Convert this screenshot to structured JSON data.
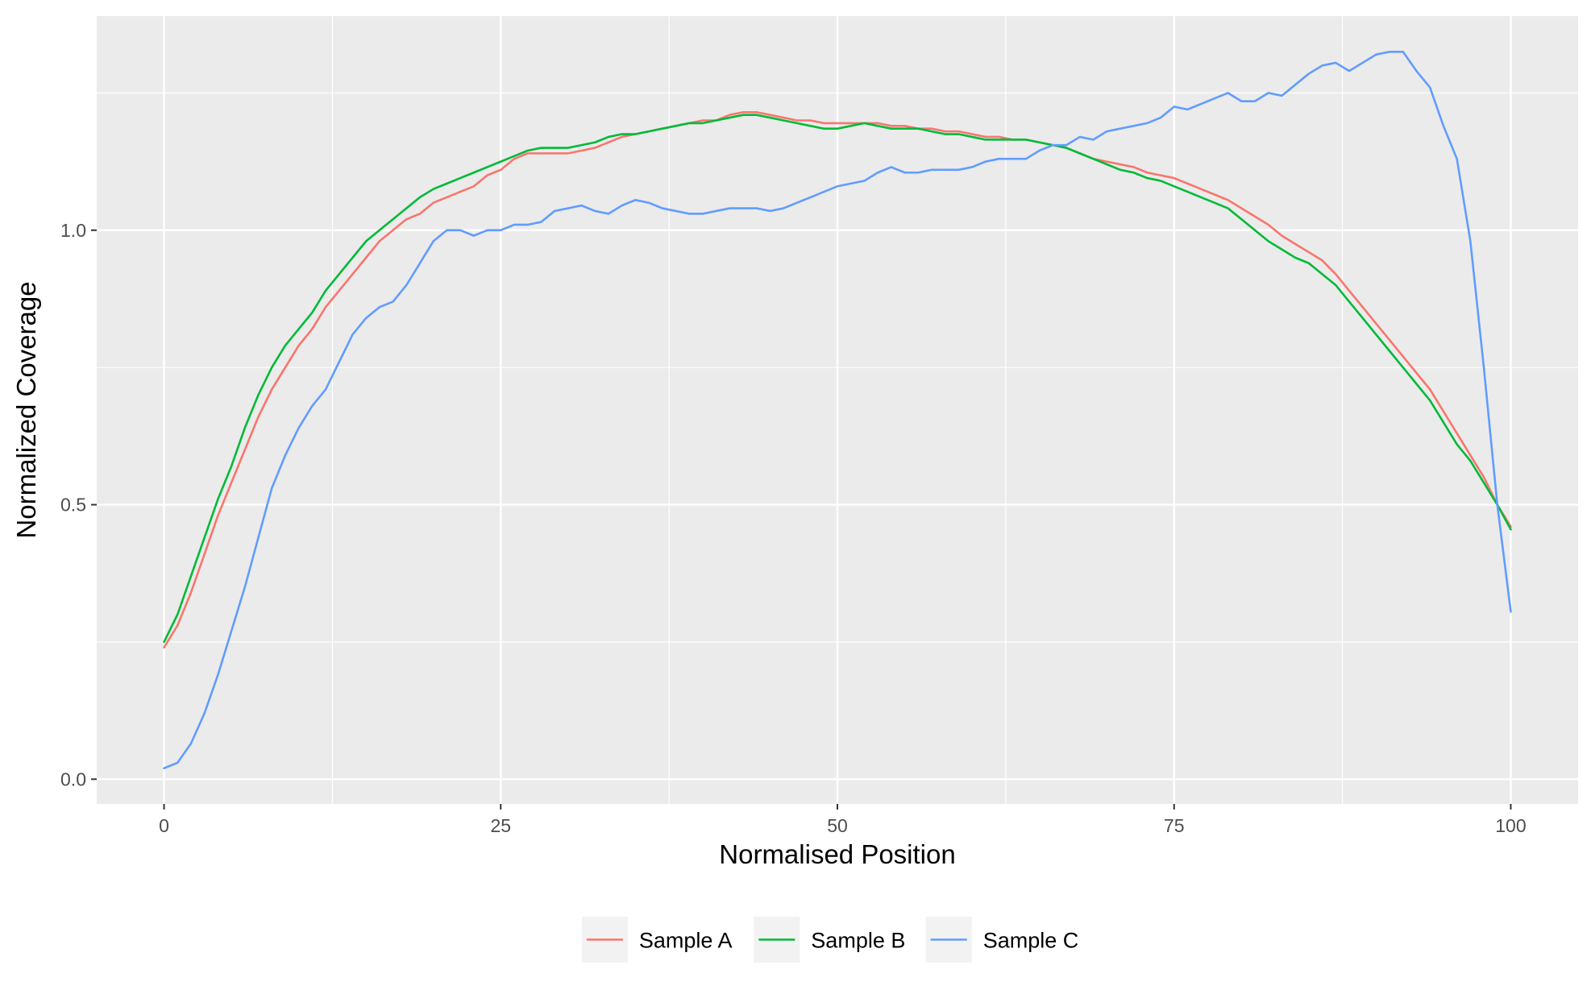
{
  "chart_data": {
    "type": "line",
    "xlabel": "Normalised Position",
    "ylabel": "Normalized Coverage",
    "xlim": [
      -5,
      105
    ],
    "ylim": [
      -0.045,
      1.39
    ],
    "x_ticks": [
      0,
      25,
      50,
      75,
      100
    ],
    "x_tick_labels": [
      "0",
      "25",
      "50",
      "75",
      "100"
    ],
    "y_ticks": [
      0.0,
      0.5,
      1.0
    ],
    "y_tick_labels": [
      "0.0",
      "0.5",
      "1.0"
    ],
    "grid": true,
    "panel_background": "#ebebeb",
    "legend_position": "bottom",
    "x": [
      0,
      1,
      2,
      3,
      4,
      5,
      6,
      7,
      8,
      9,
      10,
      11,
      12,
      13,
      14,
      15,
      16,
      17,
      18,
      19,
      20,
      21,
      22,
      23,
      24,
      25,
      26,
      27,
      28,
      29,
      30,
      31,
      32,
      33,
      34,
      35,
      36,
      37,
      38,
      39,
      40,
      41,
      42,
      43,
      44,
      45,
      46,
      47,
      48,
      49,
      50,
      51,
      52,
      53,
      54,
      55,
      56,
      57,
      58,
      59,
      60,
      61,
      62,
      63,
      64,
      65,
      66,
      67,
      68,
      69,
      70,
      71,
      72,
      73,
      74,
      75,
      76,
      77,
      78,
      79,
      80,
      81,
      82,
      83,
      84,
      85,
      86,
      87,
      88,
      89,
      90,
      91,
      92,
      93,
      94,
      95,
      96,
      97,
      98,
      99,
      100
    ],
    "series": [
      {
        "name": "Sample A",
        "color": "#f8766d",
        "values": [
          0.24,
          0.28,
          0.34,
          0.41,
          0.48,
          0.54,
          0.6,
          0.66,
          0.71,
          0.75,
          0.79,
          0.82,
          0.86,
          0.89,
          0.92,
          0.95,
          0.98,
          1.0,
          1.02,
          1.03,
          1.05,
          1.06,
          1.07,
          1.08,
          1.1,
          1.11,
          1.13,
          1.14,
          1.14,
          1.14,
          1.14,
          1.145,
          1.15,
          1.16,
          1.17,
          1.175,
          1.18,
          1.185,
          1.19,
          1.195,
          1.2,
          1.2,
          1.21,
          1.215,
          1.215,
          1.21,
          1.205,
          1.2,
          1.2,
          1.195,
          1.195,
          1.195,
          1.195,
          1.195,
          1.19,
          1.19,
          1.185,
          1.185,
          1.18,
          1.18,
          1.175,
          1.17,
          1.17,
          1.165,
          1.165,
          1.16,
          1.155,
          1.15,
          1.14,
          1.13,
          1.125,
          1.12,
          1.115,
          1.105,
          1.1,
          1.095,
          1.085,
          1.075,
          1.065,
          1.055,
          1.04,
          1.025,
          1.01,
          0.99,
          0.975,
          0.96,
          0.945,
          0.92,
          0.89,
          0.86,
          0.83,
          0.8,
          0.77,
          0.74,
          0.71,
          0.67,
          0.63,
          0.59,
          0.55,
          0.5,
          0.46
        ]
      },
      {
        "name": "Sample B",
        "color": "#00ba38",
        "values": [
          0.25,
          0.3,
          0.37,
          0.44,
          0.51,
          0.57,
          0.64,
          0.7,
          0.75,
          0.79,
          0.82,
          0.85,
          0.89,
          0.92,
          0.95,
          0.98,
          1.0,
          1.02,
          1.04,
          1.06,
          1.075,
          1.085,
          1.095,
          1.105,
          1.115,
          1.125,
          1.135,
          1.145,
          1.15,
          1.15,
          1.15,
          1.155,
          1.16,
          1.17,
          1.175,
          1.175,
          1.18,
          1.185,
          1.19,
          1.195,
          1.195,
          1.2,
          1.205,
          1.21,
          1.21,
          1.205,
          1.2,
          1.195,
          1.19,
          1.185,
          1.185,
          1.19,
          1.195,
          1.19,
          1.185,
          1.185,
          1.185,
          1.18,
          1.175,
          1.175,
          1.17,
          1.165,
          1.165,
          1.165,
          1.165,
          1.16,
          1.155,
          1.15,
          1.14,
          1.13,
          1.12,
          1.11,
          1.105,
          1.095,
          1.09,
          1.08,
          1.07,
          1.06,
          1.05,
          1.04,
          1.02,
          1.0,
          0.98,
          0.965,
          0.95,
          0.94,
          0.92,
          0.9,
          0.87,
          0.84,
          0.81,
          0.78,
          0.75,
          0.72,
          0.69,
          0.65,
          0.61,
          0.58,
          0.54,
          0.5,
          0.455
        ]
      },
      {
        "name": "Sample C",
        "color": "#619cff",
        "values": [
          0.02,
          0.03,
          0.065,
          0.12,
          0.19,
          0.27,
          0.35,
          0.44,
          0.53,
          0.59,
          0.64,
          0.68,
          0.71,
          0.76,
          0.81,
          0.84,
          0.86,
          0.87,
          0.9,
          0.94,
          0.98,
          1.0,
          1.0,
          0.99,
          1.0,
          1.0,
          1.01,
          1.01,
          1.015,
          1.035,
          1.04,
          1.045,
          1.035,
          1.03,
          1.045,
          1.055,
          1.05,
          1.04,
          1.035,
          1.03,
          1.03,
          1.035,
          1.04,
          1.04,
          1.04,
          1.035,
          1.04,
          1.05,
          1.06,
          1.07,
          1.08,
          1.085,
          1.09,
          1.105,
          1.115,
          1.105,
          1.105,
          1.11,
          1.11,
          1.11,
          1.115,
          1.125,
          1.13,
          1.13,
          1.13,
          1.145,
          1.155,
          1.155,
          1.17,
          1.165,
          1.18,
          1.185,
          1.19,
          1.195,
          1.205,
          1.225,
          1.22,
          1.23,
          1.24,
          1.25,
          1.235,
          1.235,
          1.25,
          1.245,
          1.265,
          1.285,
          1.3,
          1.305,
          1.29,
          1.305,
          1.32,
          1.325,
          1.325,
          1.29,
          1.26,
          1.19,
          1.13,
          0.98,
          0.75,
          0.5,
          0.305
        ]
      }
    ]
  }
}
